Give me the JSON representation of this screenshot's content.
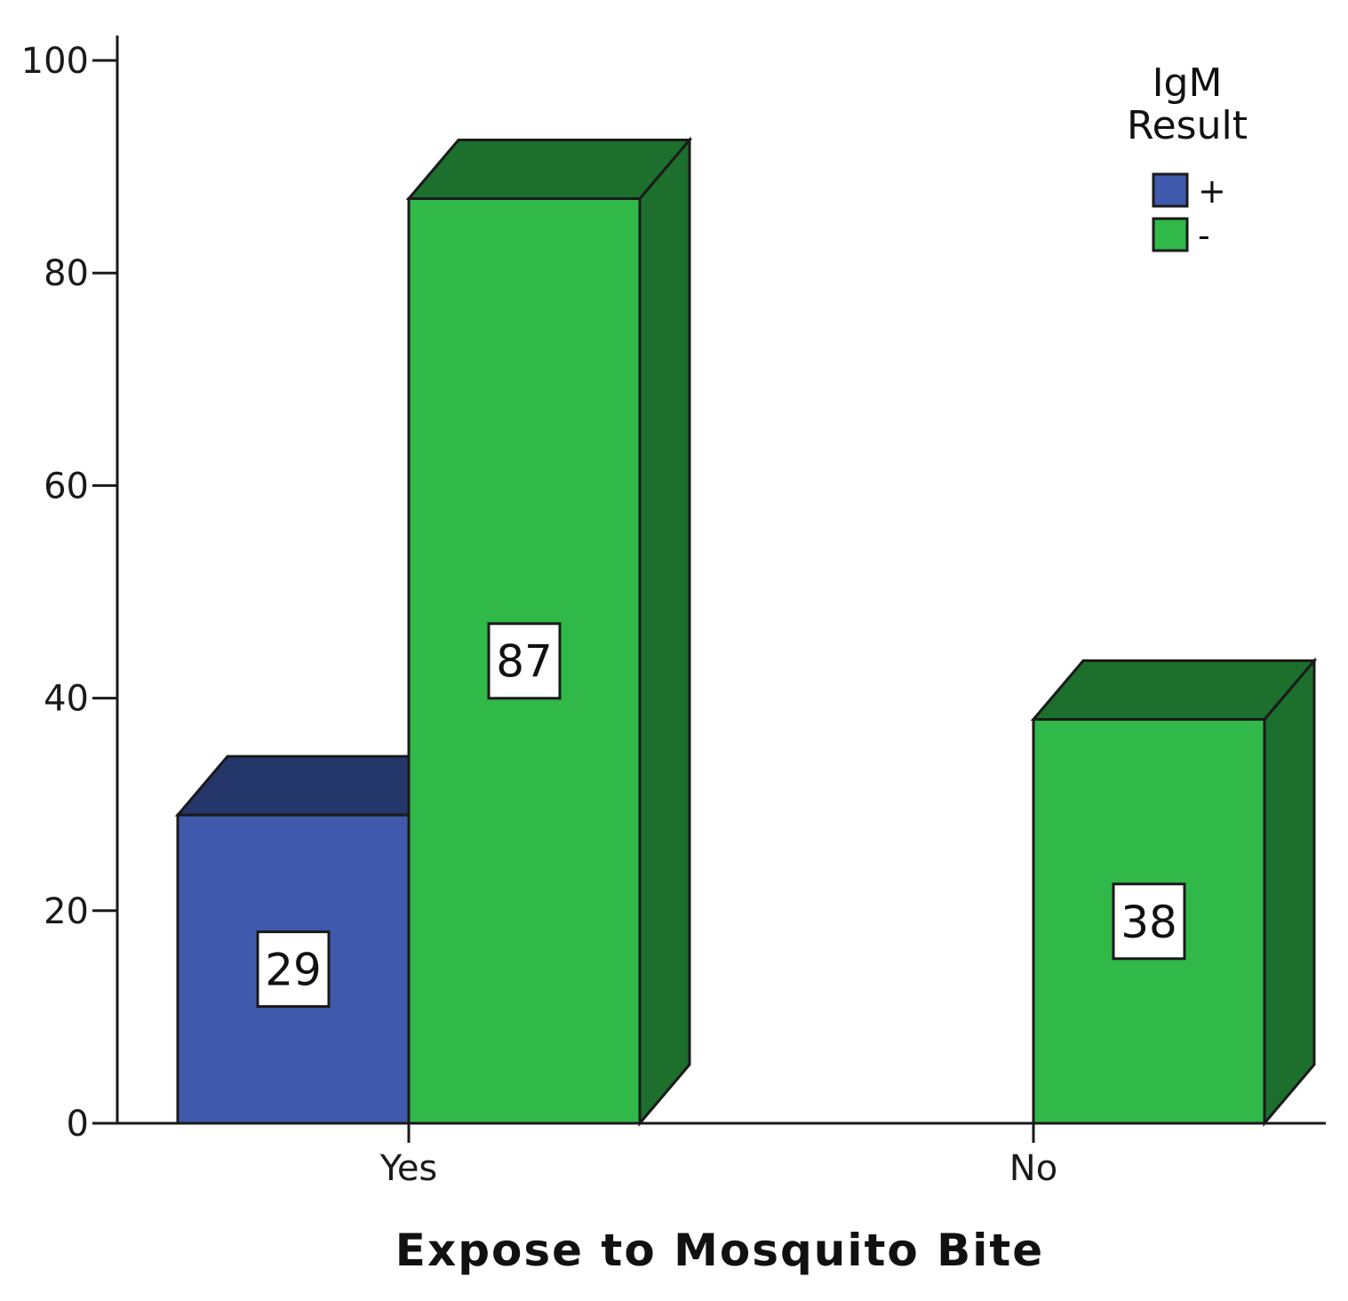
{
  "chart_data": {
    "type": "bar",
    "categories": [
      "Yes",
      "No"
    ],
    "series": [
      {
        "name": "+",
        "values": [
          29,
          0
        ],
        "color": "#3f5aad",
        "top_color": "#25366a"
      },
      {
        "name": "-",
        "values": [
          87,
          38
        ],
        "color": "#30b849",
        "top_color": "#1c6f2c"
      }
    ],
    "data_labels": [
      {
        "series": 0,
        "category": 0,
        "text": "29"
      },
      {
        "series": 1,
        "category": 0,
        "text": "87"
      },
      {
        "series": 1,
        "category": 1,
        "text": "38"
      }
    ],
    "xlabel": "Expose to Mosquito Bite",
    "ylabel": "",
    "ylim": [
      0,
      100
    ],
    "yticks": [
      0,
      20,
      40,
      60,
      80,
      100
    ],
    "grid": false,
    "legend": {
      "title_lines": [
        "IgM",
        "Result"
      ],
      "position": "top-right"
    }
  }
}
